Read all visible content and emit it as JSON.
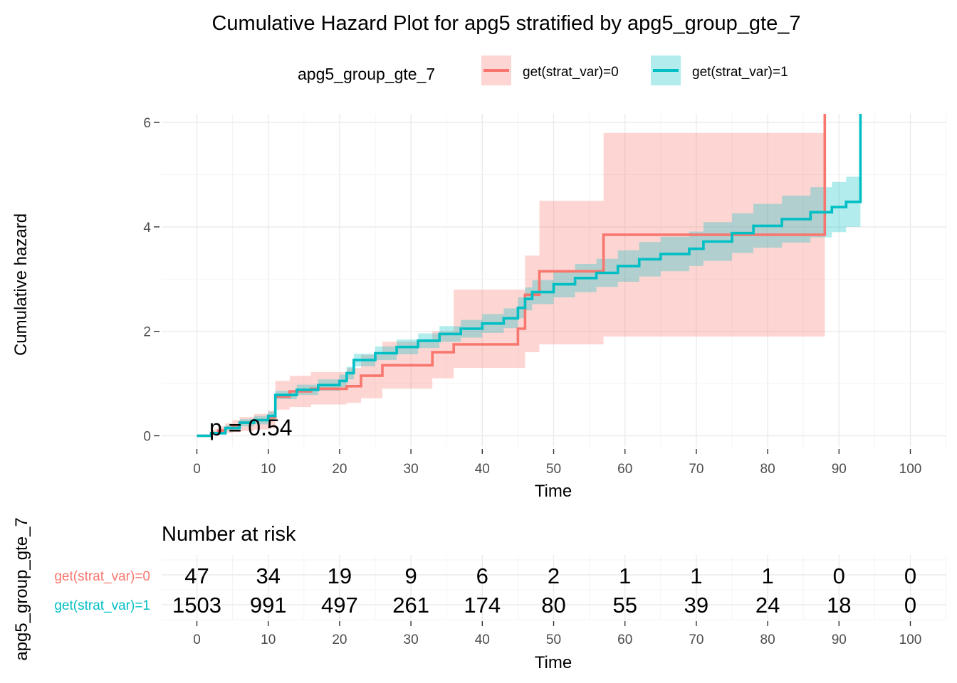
{
  "chart_data": {
    "type": "step",
    "title": "Cumulative Hazard Plot for apg5 stratified by apg5_group_gte_7",
    "xlabel": "Time",
    "ylabel": "Cumulative hazard",
    "xlim": [
      0,
      100
    ],
    "ylim": [
      0,
      6
    ],
    "x_ticks": [
      0,
      10,
      20,
      30,
      40,
      50,
      60,
      70,
      80,
      90,
      100
    ],
    "y_ticks": [
      0,
      2,
      4,
      6
    ],
    "grid": true,
    "legend": {
      "title": "apg5_group_gte_7",
      "position": "top",
      "entries": [
        "get(strat_var)=0",
        "get(strat_var)=1"
      ]
    },
    "annotation": "p = 0.54",
    "series": [
      {
        "name": "get(strat_var)=0",
        "color": "#F8766D",
        "x": [
          0,
          2,
          3,
          4,
          5,
          6,
          8,
          10,
          11,
          13,
          16,
          21,
          23,
          26,
          33,
          36,
          45,
          46,
          48,
          57,
          88
        ],
        "y": [
          0,
          0.05,
          0.1,
          0.15,
          0.2,
          0.25,
          0.3,
          0.35,
          0.75,
          0.85,
          0.9,
          0.95,
          1.15,
          1.35,
          1.6,
          1.75,
          2.05,
          2.7,
          3.15,
          3.85,
          6.3
        ],
        "lower": [
          0,
          0.01,
          0.03,
          0.05,
          0.07,
          0.09,
          0.12,
          0.14,
          0.5,
          0.55,
          0.6,
          0.63,
          0.72,
          0.9,
          1.1,
          1.3,
          1.3,
          1.6,
          1.75,
          1.9,
          1.9
        ],
        "upper": [
          0,
          0.12,
          0.18,
          0.24,
          0.3,
          0.36,
          0.42,
          0.48,
          1.05,
          1.15,
          1.22,
          1.3,
          1.55,
          1.8,
          2.0,
          2.8,
          2.8,
          3.45,
          4.5,
          5.8,
          5.8
        ]
      },
      {
        "name": "get(strat_var)=1",
        "color": "#00BFC4",
        "x": [
          0,
          2,
          4,
          6,
          8,
          10,
          11,
          14,
          17,
          20,
          21,
          22,
          25,
          28,
          31,
          34,
          37,
          40,
          43,
          45,
          46,
          47,
          50,
          53,
          56,
          59,
          62,
          65,
          69,
          71,
          75,
          78,
          82,
          86,
          89,
          91,
          93
        ],
        "y": [
          0,
          0.05,
          0.15,
          0.25,
          0.3,
          0.38,
          0.78,
          0.88,
          0.97,
          1.05,
          1.2,
          1.45,
          1.58,
          1.7,
          1.82,
          1.95,
          2.05,
          2.15,
          2.25,
          2.45,
          2.62,
          2.75,
          2.9,
          3.02,
          3.12,
          3.25,
          3.38,
          3.48,
          3.58,
          3.72,
          3.88,
          4.02,
          4.15,
          4.28,
          4.38,
          4.48,
          6.3
        ],
        "lower": [
          0,
          0.02,
          0.1,
          0.18,
          0.22,
          0.3,
          0.7,
          0.78,
          0.86,
          0.93,
          1.08,
          1.33,
          1.45,
          1.56,
          1.68,
          1.8,
          1.88,
          1.97,
          2.06,
          2.25,
          2.4,
          2.52,
          2.65,
          2.75,
          2.85,
          2.95,
          3.05,
          3.15,
          3.25,
          3.35,
          3.5,
          3.6,
          3.7,
          3.8,
          3.9,
          4.0,
          4.0
        ],
        "upper": [
          0,
          0.08,
          0.2,
          0.32,
          0.38,
          0.46,
          0.86,
          0.98,
          1.08,
          1.17,
          1.32,
          1.57,
          1.71,
          1.84,
          1.96,
          2.1,
          2.22,
          2.33,
          2.44,
          2.65,
          2.84,
          2.98,
          3.15,
          3.29,
          3.39,
          3.55,
          3.71,
          3.81,
          3.91,
          4.09,
          4.26,
          4.44,
          4.6,
          4.76,
          4.86,
          4.96,
          5.05
        ]
      }
    ],
    "risk_table": {
      "title": "Number at risk",
      "ylabel": "apg5_group_gte_7",
      "xlabel": "Time",
      "times": [
        0,
        10,
        20,
        30,
        40,
        50,
        60,
        70,
        80,
        90,
        100
      ],
      "strata": [
        {
          "name": "get(strat_var)=0",
          "color": "#F8766D",
          "values": [
            47,
            34,
            19,
            9,
            6,
            2,
            1,
            1,
            1,
            0,
            0
          ]
        },
        {
          "name": "get(strat_var)=1",
          "color": "#00BFC4",
          "values": [
            1503,
            991,
            497,
            261,
            174,
            80,
            55,
            39,
            24,
            18,
            0
          ]
        }
      ]
    }
  }
}
